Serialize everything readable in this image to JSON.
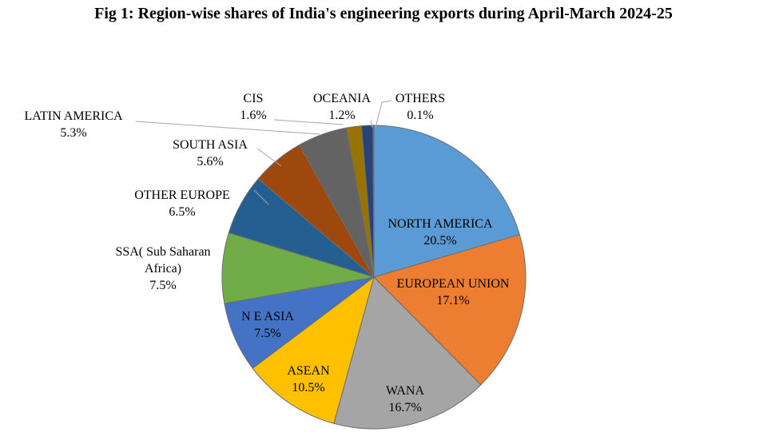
{
  "chart_data": {
    "type": "pie",
    "title": "Fig 1: Region-wise shares of India's engineering exports during April-March 2024-25",
    "unit": "%",
    "slices": [
      {
        "name": "NORTH AMERICA",
        "value": 20.5,
        "label_lines": [
          "NORTH AMERICA"
        ],
        "value_text": "20.5%",
        "color": "#5B9BD5"
      },
      {
        "name": "EUROPEAN UNION",
        "value": 17.1,
        "label_lines": [
          "EUROPEAN UNION"
        ],
        "value_text": "17.1%",
        "color": "#ED7D31"
      },
      {
        "name": "WANA",
        "value": 16.7,
        "label_lines": [
          "WANA"
        ],
        "value_text": "16.7%",
        "color": "#A5A5A5"
      },
      {
        "name": "ASEAN",
        "value": 10.5,
        "label_lines": [
          "ASEAN"
        ],
        "value_text": "10.5%",
        "color": "#FFC000"
      },
      {
        "name": "N E ASIA",
        "value": 7.5,
        "label_lines": [
          "N E ASIA"
        ],
        "value_text": "7.5%",
        "color": "#4472C4"
      },
      {
        "name": "SSA( Sub Saharan Africa)",
        "value": 7.5,
        "label_lines": [
          "SSA( Sub Saharan",
          "Africa)"
        ],
        "value_text": "7.5%",
        "color": "#70AD47"
      },
      {
        "name": "OTHER EUROPE",
        "value": 6.5,
        "label_lines": [
          "OTHER EUROPE"
        ],
        "value_text": "6.5%",
        "color": "#255E91"
      },
      {
        "name": "SOUTH ASIA",
        "value": 5.6,
        "label_lines": [
          "SOUTH ASIA"
        ],
        "value_text": "5.6%",
        "color": "#9E480E"
      },
      {
        "name": "LATIN AMERICA",
        "value": 5.3,
        "label_lines": [
          "LATIN AMERICA"
        ],
        "value_text": "5.3%",
        "color": "#636363"
      },
      {
        "name": "CIS",
        "value": 1.6,
        "label_lines": [
          "CIS"
        ],
        "value_text": "1.6%",
        "color": "#997300"
      },
      {
        "name": "OCEANIA",
        "value": 1.2,
        "label_lines": [
          "OCEANIA"
        ],
        "value_text": "1.2%",
        "color": "#264478"
      },
      {
        "name": "OTHERS",
        "value": 0.1,
        "label_lines": [
          "OTHERS"
        ],
        "value_text": "0.1%",
        "color": "#43682B"
      }
    ]
  }
}
